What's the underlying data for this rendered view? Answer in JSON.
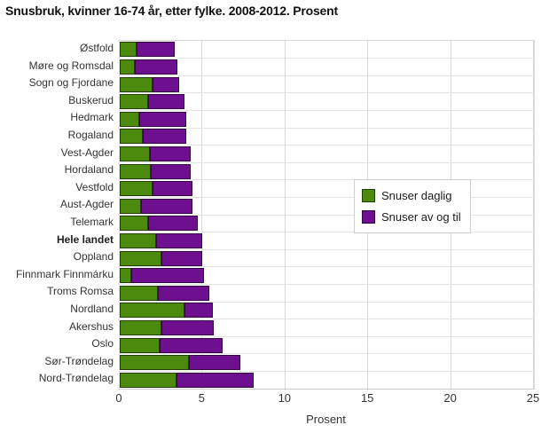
{
  "title": "Snusbruk, kvinner 16-74 år, etter fylke. 2008-2012. Prosent",
  "chart_data": {
    "type": "bar",
    "orientation": "horizontal",
    "stacked": true,
    "title": "Snusbruk, kvinner 16-74 år, etter fylke. 2008-2012. Prosent",
    "xlabel": "Prosent",
    "ylabel": "",
    "xlim": [
      0,
      25
    ],
    "xticks": [
      0,
      5,
      10,
      15,
      20,
      25
    ],
    "grid": true,
    "legend_position": "center-right-overlay",
    "emphasized_category": "Hele landet",
    "categories": [
      "Østfold",
      "Møre og Romsdal",
      "Sogn og Fjordane",
      "Buskerud",
      "Hedmark",
      "Rogaland",
      "Vest-Agder",
      "Hordaland",
      "Vestfold",
      "Aust-Agder",
      "Telemark",
      "Hele landet",
      "Oppland",
      "Finnmark Finnmárku",
      "Troms Romsa",
      "Nordland",
      "Akershus",
      "Oslo",
      "Sør-Trøndelag",
      "Nord-Trøndelag"
    ],
    "series": [
      {
        "name": "Snuser daglig",
        "color": "#4c8a0e",
        "values": [
          1.0,
          0.9,
          2.0,
          1.7,
          1.2,
          1.4,
          1.8,
          1.9,
          2.0,
          1.3,
          1.7,
          2.2,
          2.5,
          0.7,
          2.3,
          3.9,
          2.5,
          2.4,
          4.2,
          3.4
        ]
      },
      {
        "name": "Snuser av og til",
        "color": "#6e0f90",
        "values": [
          2.3,
          2.6,
          1.6,
          2.2,
          2.8,
          2.6,
          2.5,
          2.4,
          2.4,
          3.1,
          3.0,
          2.8,
          2.5,
          4.4,
          3.1,
          1.7,
          3.2,
          3.8,
          3.1,
          4.7
        ]
      }
    ]
  },
  "colors": {
    "daily": "#4c8a0e",
    "occasional": "#6e0f90",
    "grid": "#d8d8d8",
    "text": "#333333"
  }
}
